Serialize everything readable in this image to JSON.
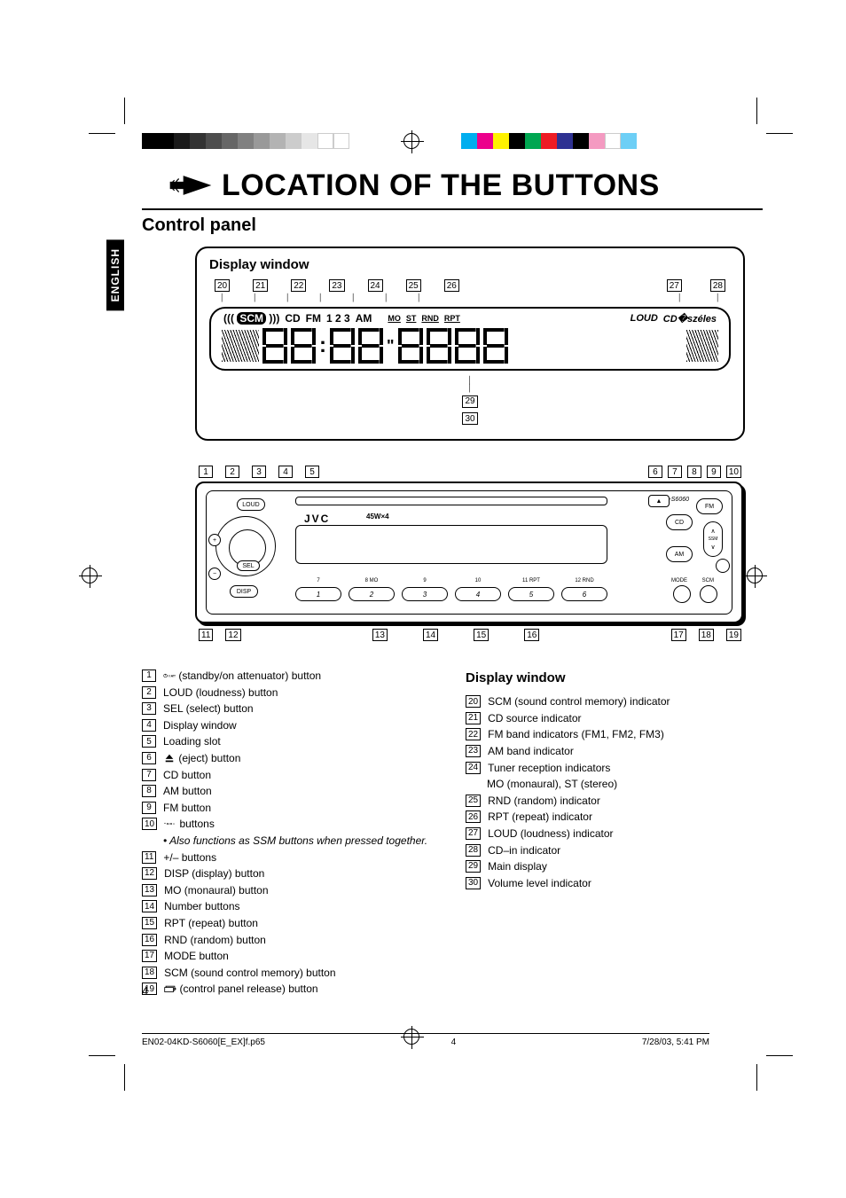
{
  "main_title": "LOCATION OF THE BUTTONS",
  "subtitle": "Control panel",
  "lang_tab": "ENGLISH",
  "display_window_label": "Display window",
  "lcd": {
    "scm": "SCM",
    "cd": "CD",
    "fm": "FM",
    "nums": "1 2 3",
    "am": "AM",
    "mo": "MO",
    "st": "ST",
    "rnd": "RND",
    "rpt": "RPT",
    "loud": "LOUD",
    "cdin": "CD"
  },
  "callouts_display_top": [
    "20",
    "21",
    "22",
    "23",
    "24",
    "25",
    "26",
    "27",
    "28"
  ],
  "callouts_display_bottom": [
    "29",
    "30"
  ],
  "callouts_radio_top_left": [
    "1",
    "2",
    "3",
    "4",
    "5"
  ],
  "callouts_radio_top_right": [
    "6",
    "7",
    "8",
    "9",
    "10"
  ],
  "callouts_radio_bottom_left": [
    "11",
    "12"
  ],
  "callouts_radio_bottom_mid": [
    "13",
    "14",
    "15",
    "16"
  ],
  "callouts_radio_bottom_right": [
    "17",
    "18",
    "19"
  ],
  "radio": {
    "brand": "JVC",
    "power": "45W×4",
    "model": "KD-S6060",
    "loud_btn": "LOUD",
    "sel_btn": "SEL",
    "disp_btn": "DISP",
    "fm_btn": "FM",
    "cd_btn": "CD",
    "am_btn": "AM",
    "mode_btn": "MODE",
    "scm_btn": "SCM",
    "ssm_btn": "SSM",
    "preset_labels": [
      "7",
      "8  MO",
      "9",
      "10",
      "11  RPT",
      "12  RND"
    ],
    "presets": [
      "1",
      "2",
      "3",
      "4",
      "5",
      "6"
    ]
  },
  "legend_left": [
    {
      "n": "1",
      "t": " (standby/on attenuator) button",
      "icon": "power-att"
    },
    {
      "n": "2",
      "t": "LOUD (loudness) button"
    },
    {
      "n": "3",
      "t": "SEL (select) button"
    },
    {
      "n": "4",
      "t": "Display window"
    },
    {
      "n": "5",
      "t": "Loading slot"
    },
    {
      "n": "6",
      "t": " (eject) button",
      "icon": "eject"
    },
    {
      "n": "7",
      "t": "CD button"
    },
    {
      "n": "8",
      "t": "AM button"
    },
    {
      "n": "9",
      "t": "FM button"
    },
    {
      "n": "10",
      "t": " buttons",
      "icon": "nav"
    },
    {
      "n": "",
      "t": "• Also functions as SSM buttons when pressed together.",
      "sub": true
    },
    {
      "n": "11",
      "t": "+/– buttons"
    },
    {
      "n": "12",
      "t": "DISP (display) button"
    },
    {
      "n": "13",
      "t": "MO (monaural) button"
    },
    {
      "n": "14",
      "t": "Number buttons"
    },
    {
      "n": "15",
      "t": "RPT (repeat) button"
    },
    {
      "n": "16",
      "t": "RND (random) button"
    },
    {
      "n": "17",
      "t": "MODE button"
    },
    {
      "n": "18",
      "t": "SCM (sound control memory) button"
    },
    {
      "n": "19",
      "t": " (control panel release) button",
      "icon": "release"
    }
  ],
  "legend_right_title": "Display window",
  "legend_right": [
    {
      "n": "20",
      "t": "SCM (sound control memory) indicator"
    },
    {
      "n": "21",
      "t": "CD source indicator"
    },
    {
      "n": "22",
      "t": "FM band indicators (FM1, FM2, FM3)"
    },
    {
      "n": "23",
      "t": "AM band indicator"
    },
    {
      "n": "24",
      "t": "Tuner reception indicators"
    },
    {
      "n": "",
      "t": "MO (monaural), ST (stereo)",
      "indent": true
    },
    {
      "n": "25",
      "t": "RND (random) indicator"
    },
    {
      "n": "26",
      "t": "RPT (repeat) indicator"
    },
    {
      "n": "27",
      "t": "LOUD (loudness) indicator"
    },
    {
      "n": "28",
      "t": "CD–in indicator"
    },
    {
      "n": "29",
      "t": "Main display"
    },
    {
      "n": "30",
      "t": "Volume level indicator"
    }
  ],
  "page_number": "4",
  "footer": {
    "file": "EN02-04KD-S6060[E_EX]f.p65",
    "page": "4",
    "date": "7/28/03, 5:41 PM"
  },
  "color_bars_left": [
    "#000000",
    "#000000",
    "#1a1a1a",
    "#333333",
    "#4d4d4d",
    "#666666",
    "#808080",
    "#999999",
    "#b3b3b3",
    "#cccccc",
    "#e6e6e6",
    "#ffffff",
    "#ffffff"
  ],
  "color_bars_right": [
    "#00aeef",
    "#ec008c",
    "#fff200",
    "#000000",
    "#00a651",
    "#ed1c24",
    "#2e3192",
    "#000000",
    "#f49ac1",
    "#ffffff",
    "#6dcff6"
  ]
}
